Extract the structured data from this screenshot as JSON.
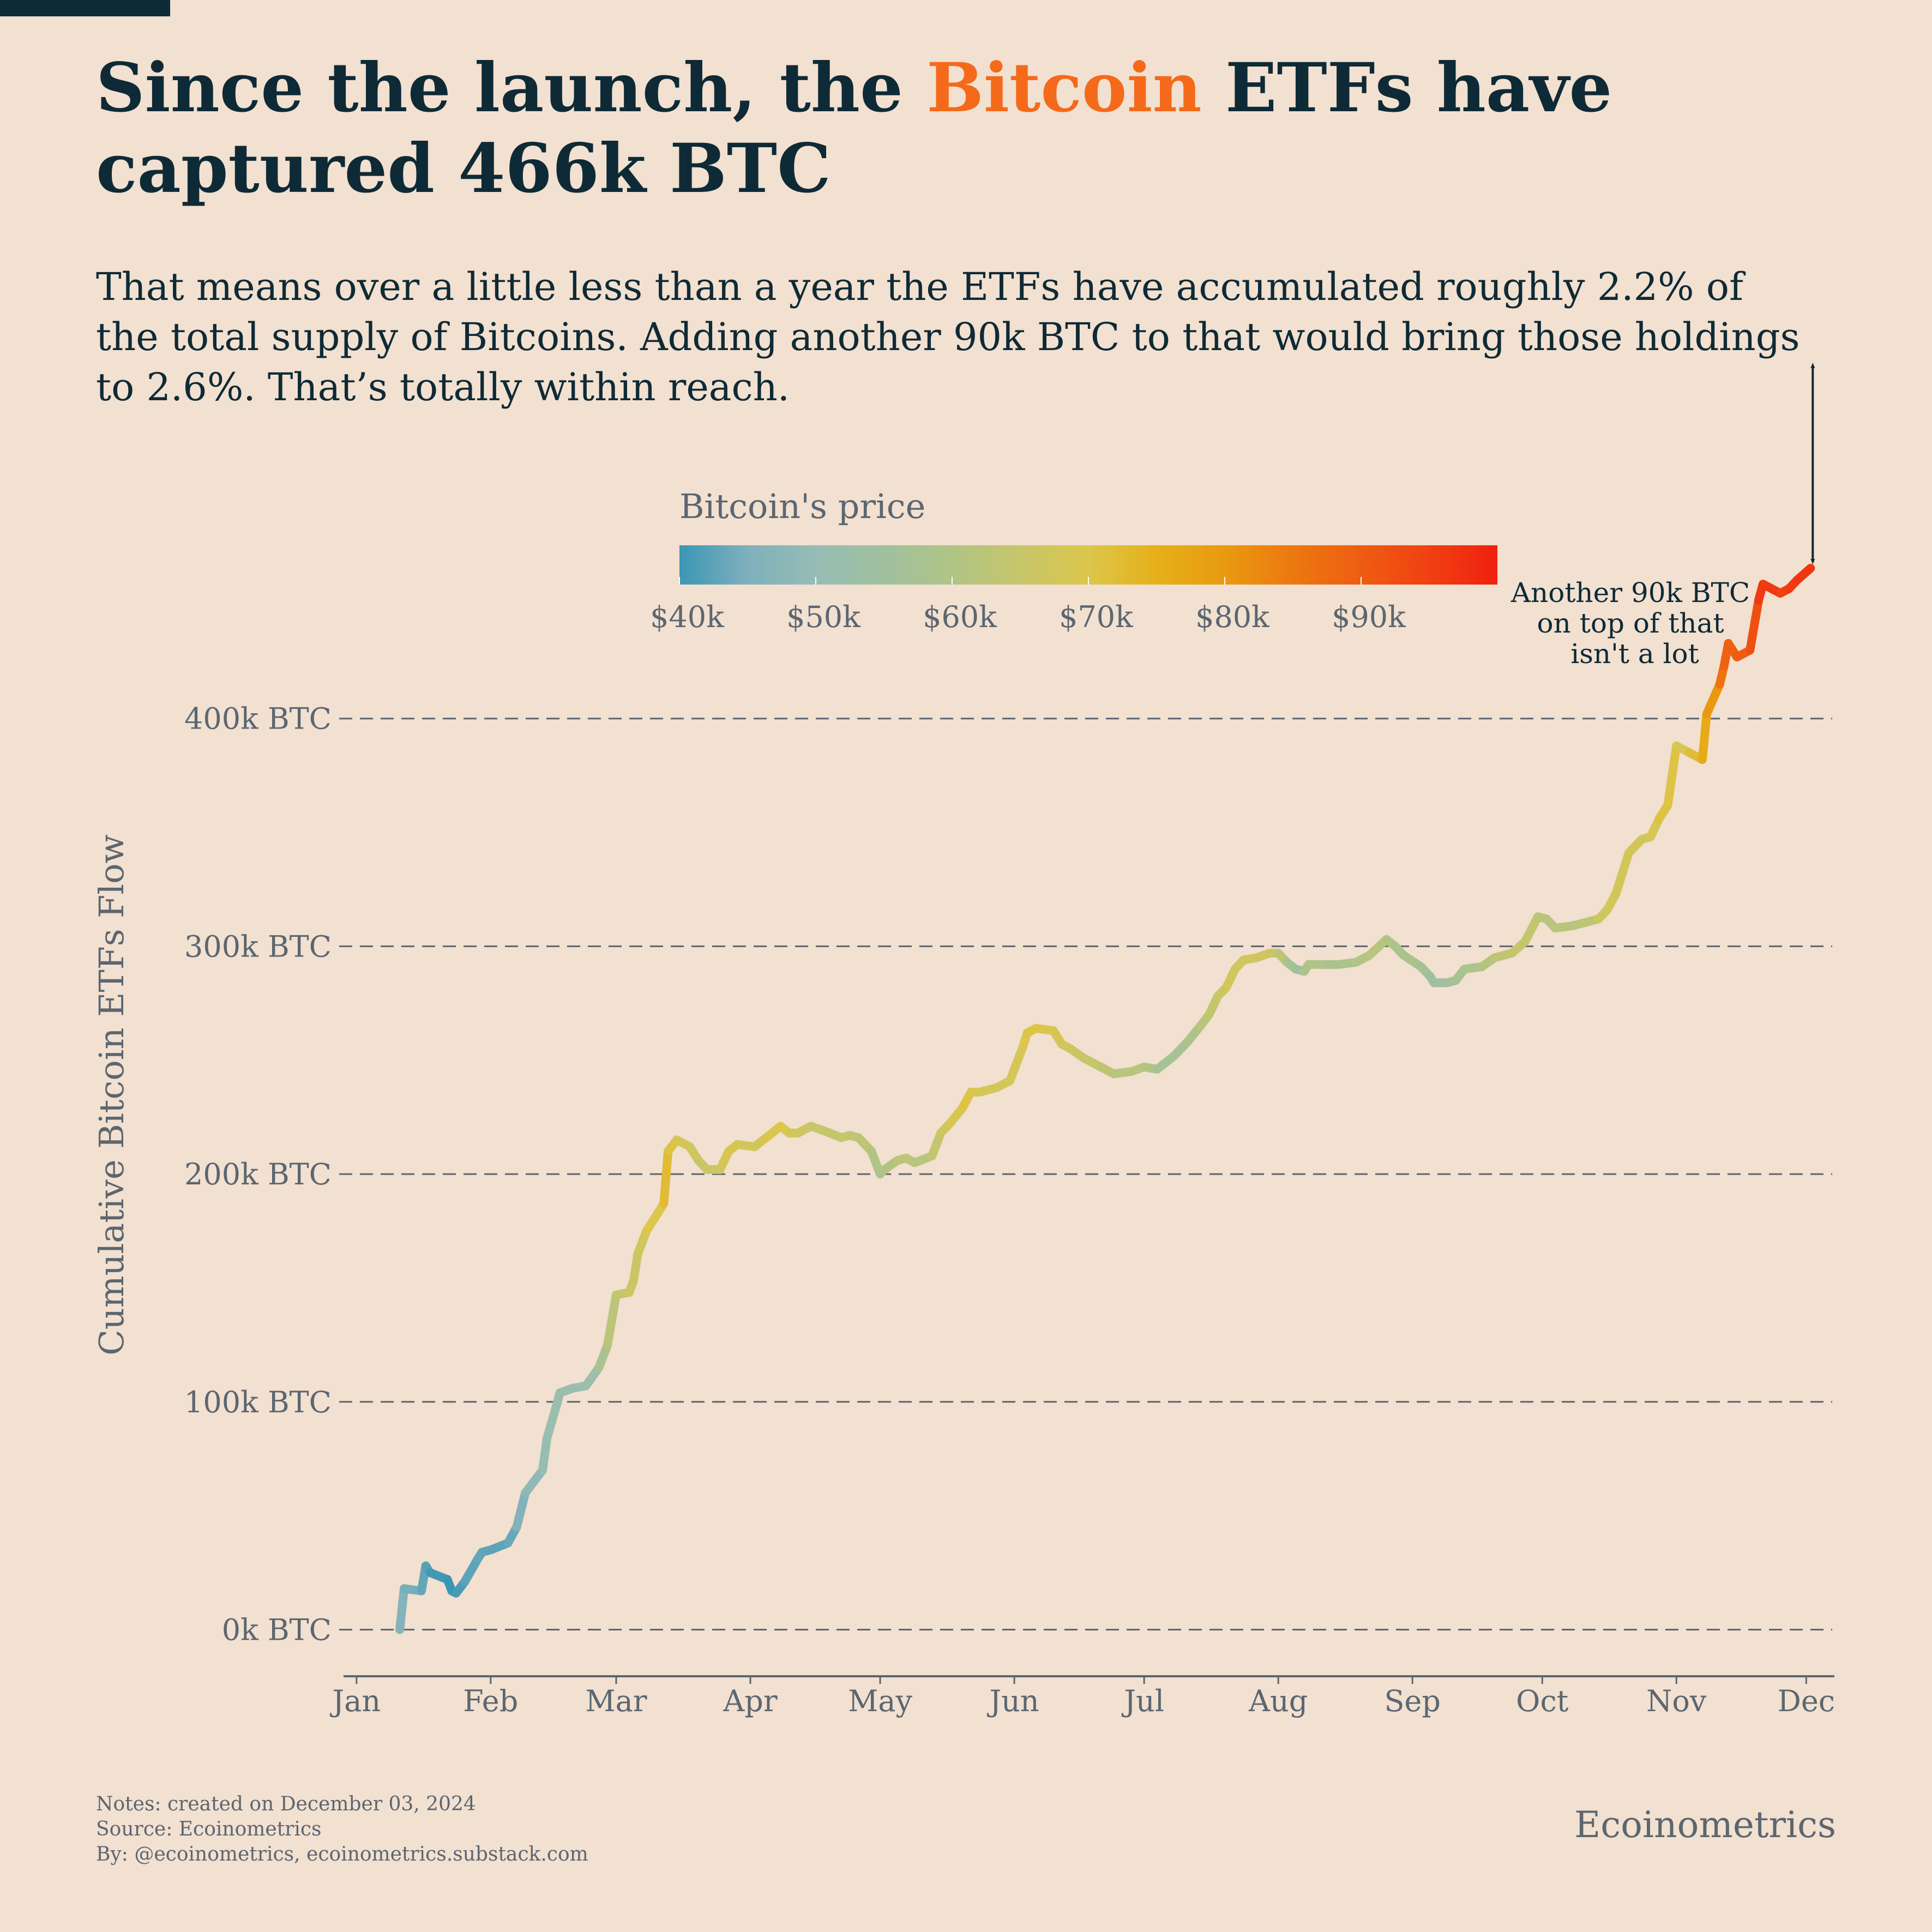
{
  "title": {
    "before": "Since the launch, the ",
    "highlight": "Bitcoin",
    "after": " ETFs have captured 466k BTC",
    "highlight_color": "#f46a1a"
  },
  "subtitle": "That means over a little less than a year the ETFs have accumulated roughly 2.2% of the total supply of Bitcoins. Adding another 90k BTC to that would bring those holdings to 2.6%. That’s totally within reach.",
  "colorbar": {
    "title": "Bitcoin's price",
    "min": 40000,
    "max": 100000,
    "ticks": [
      {
        "value": 40000,
        "label": "$40k"
      },
      {
        "value": 50000,
        "label": "$50k"
      },
      {
        "value": 60000,
        "label": "$60k"
      },
      {
        "value": 70000,
        "label": "$70k"
      },
      {
        "value": 80000,
        "label": "$80k"
      },
      {
        "value": 90000,
        "label": "$90k"
      }
    ],
    "stops": [
      {
        "value": 40000,
        "color": "#3b96b5"
      },
      {
        "value": 45000,
        "color": "#7fb0bc"
      },
      {
        "value": 50000,
        "color": "#96bdb5"
      },
      {
        "value": 55000,
        "color": "#a0c09e"
      },
      {
        "value": 60000,
        "color": "#b0c486"
      },
      {
        "value": 65000,
        "color": "#c6c66a"
      },
      {
        "value": 70000,
        "color": "#dcc64c"
      },
      {
        "value": 75000,
        "color": "#e6b019"
      },
      {
        "value": 80000,
        "color": "#e99a10"
      },
      {
        "value": 85000,
        "color": "#ec7810"
      },
      {
        "value": 90000,
        "color": "#ee5d12"
      },
      {
        "value": 95000,
        "color": "#f04012"
      },
      {
        "value": 100000,
        "color": "#f02010"
      }
    ]
  },
  "annotation": {
    "lines": [
      "Another 90k BTC",
      "on top of that",
      "isn't a lot"
    ],
    "from_value": 466000,
    "to_value": 556000,
    "date": "2024-12-02"
  },
  "chart_data": {
    "type": "line",
    "title": "",
    "ylabel": "Cumulative Bitcoin ETFs Flow",
    "xlabel": "",
    "ylim": [
      -20000,
      500000
    ],
    "xlim": [
      "2023-12-29",
      "2024-12-07"
    ],
    "y_ticks": [
      {
        "value": 0,
        "label": "0k BTC"
      },
      {
        "value": 100000,
        "label": "100k BTC"
      },
      {
        "value": 200000,
        "label": "200k BTC"
      },
      {
        "value": 300000,
        "label": "300k BTC"
      },
      {
        "value": 400000,
        "label": "400k BTC"
      }
    ],
    "x_ticks": [
      {
        "date": "2024-01-01",
        "label": "Jan"
      },
      {
        "date": "2024-02-01",
        "label": "Feb"
      },
      {
        "date": "2024-03-01",
        "label": "Mar"
      },
      {
        "date": "2024-04-01",
        "label": "Apr"
      },
      {
        "date": "2024-05-01",
        "label": "May"
      },
      {
        "date": "2024-06-01",
        "label": "Jun"
      },
      {
        "date": "2024-07-01",
        "label": "Jul"
      },
      {
        "date": "2024-08-01",
        "label": "Aug"
      },
      {
        "date": "2024-09-01",
        "label": "Sep"
      },
      {
        "date": "2024-10-01",
        "label": "Oct"
      },
      {
        "date": "2024-11-01",
        "label": "Nov"
      },
      {
        "date": "2024-12-01",
        "label": "Dec"
      }
    ],
    "grid": "horizontal dashed",
    "series": [
      {
        "points": [
          [
            "2024-01-11",
            0,
            46000
          ],
          [
            "2024-01-12",
            18000,
            46000
          ],
          [
            "2024-01-16",
            17000,
            43000
          ],
          [
            "2024-01-17",
            28000,
            43000
          ],
          [
            "2024-01-18",
            25000,
            41000
          ],
          [
            "2024-01-22",
            22000,
            40000
          ],
          [
            "2024-01-23",
            17000,
            39500
          ],
          [
            "2024-01-24",
            16000,
            40000
          ],
          [
            "2024-01-26",
            21000,
            42000
          ],
          [
            "2024-01-29",
            31000,
            43000
          ],
          [
            "2024-01-30",
            34000,
            43000
          ],
          [
            "2024-02-01",
            35000,
            42500
          ],
          [
            "2024-02-05",
            38000,
            42700
          ],
          [
            "2024-02-07",
            45000,
            44000
          ],
          [
            "2024-02-09",
            60000,
            47500
          ],
          [
            "2024-02-13",
            70000,
            49500
          ],
          [
            "2024-02-14",
            84000,
            51500
          ],
          [
            "2024-02-16",
            97000,
            52000
          ],
          [
            "2024-02-17",
            104000,
            52000
          ],
          [
            "2024-02-20",
            106000,
            52000
          ],
          [
            "2024-02-23",
            107000,
            51000
          ],
          [
            "2024-02-26",
            115000,
            54000
          ],
          [
            "2024-02-28",
            125000,
            62000
          ],
          [
            "2024-03-01",
            147000,
            62000
          ],
          [
            "2024-03-04",
            148000,
            67000
          ],
          [
            "2024-03-05",
            153000,
            66000
          ],
          [
            "2024-03-06",
            165000,
            66000
          ],
          [
            "2024-03-08",
            175000,
            68000
          ],
          [
            "2024-03-12",
            187000,
            72000
          ],
          [
            "2024-03-13",
            210000,
            73000
          ],
          [
            "2024-03-15",
            215000,
            69000
          ],
          [
            "2024-03-18",
            212000,
            67000
          ],
          [
            "2024-03-20",
            206000,
            67000
          ],
          [
            "2024-03-22",
            202000,
            64000
          ],
          [
            "2024-03-25",
            202000,
            67000
          ],
          [
            "2024-03-27",
            210000,
            69000
          ],
          [
            "2024-03-29",
            213000,
            70000
          ],
          [
            "2024-04-02",
            212000,
            66000
          ],
          [
            "2024-04-04",
            215000,
            68000
          ],
          [
            "2024-04-08",
            221000,
            71000
          ],
          [
            "2024-04-10",
            218000,
            69000
          ],
          [
            "2024-04-12",
            218000,
            67000
          ],
          [
            "2024-04-15",
            221000,
            66000
          ],
          [
            "2024-04-18",
            219000,
            64000
          ],
          [
            "2024-04-22",
            216000,
            65000
          ],
          [
            "2024-04-24",
            217000,
            64500
          ],
          [
            "2024-04-26",
            216000,
            63500
          ],
          [
            "2024-04-29",
            210000,
            63000
          ],
          [
            "2024-05-01",
            200000,
            58000
          ],
          [
            "2024-05-02",
            202000,
            59000
          ],
          [
            "2024-05-05",
            206000,
            63000
          ],
          [
            "2024-05-07",
            207000,
            63000
          ],
          [
            "2024-05-09",
            205000,
            61000
          ],
          [
            "2024-05-13",
            208000,
            62500
          ],
          [
            "2024-05-15",
            218000,
            66000
          ],
          [
            "2024-05-17",
            222000,
            67000
          ],
          [
            "2024-05-20",
            229000,
            71000
          ],
          [
            "2024-05-22",
            236000,
            70000
          ],
          [
            "2024-05-24",
            236000,
            68500
          ],
          [
            "2024-05-28",
            238000,
            68000
          ],
          [
            "2024-05-31",
            241000,
            67500
          ],
          [
            "2024-06-03",
            256000,
            69000
          ],
          [
            "2024-06-04",
            262000,
            70500
          ],
          [
            "2024-06-06",
            264000,
            71000
          ],
          [
            "2024-06-10",
            263000,
            69500
          ],
          [
            "2024-06-12",
            257000,
            68000
          ],
          [
            "2024-06-14",
            255000,
            66000
          ],
          [
            "2024-06-17",
            251000,
            66000
          ],
          [
            "2024-06-21",
            247000,
            64000
          ],
          [
            "2024-06-24",
            244000,
            62000
          ],
          [
            "2024-06-28",
            245000,
            61000
          ],
          [
            "2024-07-01",
            247000,
            63000
          ],
          [
            "2024-07-04",
            246000,
            58000
          ],
          [
            "2024-07-08",
            252000,
            56000
          ],
          [
            "2024-07-11",
            258000,
            58000
          ],
          [
            "2024-07-14",
            265000,
            60000
          ],
          [
            "2024-07-16",
            270000,
            64000
          ],
          [
            "2024-07-18",
            278000,
            64500
          ],
          [
            "2024-07-20",
            282000,
            67000
          ],
          [
            "2024-07-22",
            290000,
            68000
          ],
          [
            "2024-07-24",
            294000,
            66000
          ],
          [
            "2024-07-27",
            295000,
            68000
          ],
          [
            "2024-07-30",
            297000,
            66500
          ],
          [
            "2024-08-01",
            297000,
            65000
          ],
          [
            "2024-08-03",
            293000,
            61000
          ],
          [
            "2024-08-05",
            290000,
            54000
          ],
          [
            "2024-08-07",
            289000,
            56000
          ],
          [
            "2024-08-08",
            292000,
            61000
          ],
          [
            "2024-08-12",
            292000,
            59000
          ],
          [
            "2024-08-15",
            292000,
            57500
          ],
          [
            "2024-08-19",
            293000,
            59000
          ],
          [
            "2024-08-22",
            296000,
            61000
          ],
          [
            "2024-08-26",
            303000,
            62000
          ],
          [
            "2024-08-28",
            300000,
            59000
          ],
          [
            "2024-08-30",
            296000,
            59000
          ],
          [
            "2024-09-03",
            291000,
            57500
          ],
          [
            "2024-09-05",
            287000,
            56000
          ],
          [
            "2024-09-06",
            284000,
            53000
          ],
          [
            "2024-09-09",
            284000,
            55000
          ],
          [
            "2024-09-11",
            285000,
            57000
          ],
          [
            "2024-09-13",
            290000,
            58000
          ],
          [
            "2024-09-17",
            291000,
            59000
          ],
          [
            "2024-09-20",
            295000,
            63000
          ],
          [
            "2024-09-24",
            297000,
            64000
          ],
          [
            "2024-09-27",
            302000,
            65500
          ],
          [
            "2024-09-30",
            313000,
            63500
          ],
          [
            "2024-10-02",
            312000,
            61000
          ],
          [
            "2024-10-04",
            308000,
            62000
          ],
          [
            "2024-10-08",
            309000,
            62000
          ],
          [
            "2024-10-10",
            310000,
            60500
          ],
          [
            "2024-10-14",
            312000,
            66000
          ],
          [
            "2024-10-16",
            316000,
            67500
          ],
          [
            "2024-10-18",
            323000,
            68000
          ],
          [
            "2024-10-21",
            341000,
            67500
          ],
          [
            "2024-10-24",
            347000,
            68000
          ],
          [
            "2024-10-26",
            348000,
            67000
          ],
          [
            "2024-10-28",
            356000,
            70000
          ],
          [
            "2024-10-30",
            362000,
            72000
          ],
          [
            "2024-11-01",
            388000,
            69500
          ],
          [
            "2024-11-04",
            385000,
            68000
          ],
          [
            "2024-11-07",
            382000,
            76000
          ],
          [
            "2024-11-08",
            402000,
            76500
          ],
          [
            "2024-11-11",
            415000,
            84000
          ],
          [
            "2024-11-12",
            423000,
            88000
          ],
          [
            "2024-11-13",
            433000,
            90000
          ],
          [
            "2024-11-15",
            427000,
            89000
          ],
          [
            "2024-11-18",
            430000,
            90500
          ],
          [
            "2024-11-20",
            452000,
            94000
          ],
          [
            "2024-11-21",
            459000,
            98000
          ],
          [
            "2024-11-25",
            455000,
            94000
          ],
          [
            "2024-11-27",
            457000,
            95500
          ],
          [
            "2024-11-29",
            461000,
            97000
          ],
          [
            "2024-12-02",
            466000,
            96000
          ]
        ]
      }
    ]
  },
  "notes": {
    "line1": "Notes: created on December 03, 2024",
    "line2": "Source: Ecoinometrics",
    "line3": "By: @ecoinometrics, ecoinometrics.substack.com"
  },
  "brand": "Ecoinometrics"
}
